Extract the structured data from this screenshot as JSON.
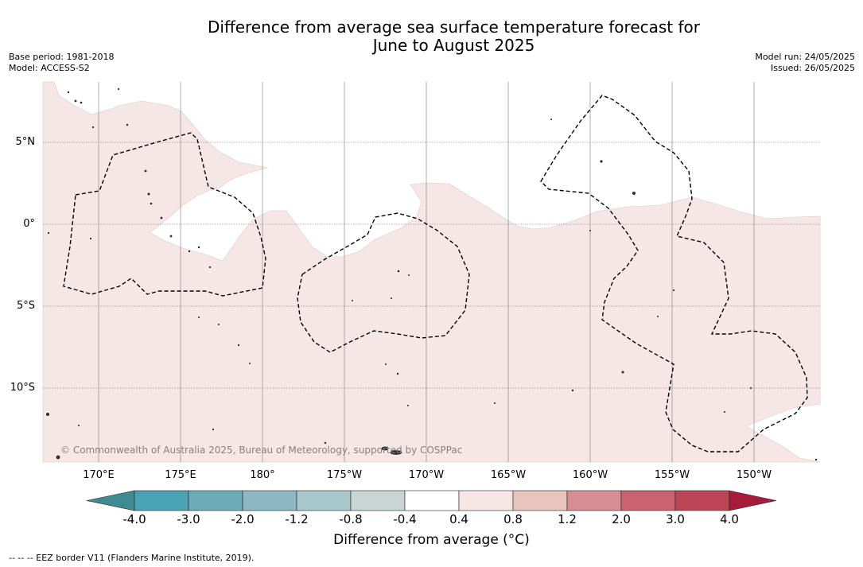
{
  "title_line1": "Difference from average sea surface temperature forecast for",
  "title_line2": "June to August 2025",
  "meta": {
    "base_period": "Base period: 1981-2018",
    "model": "Model: ACCESS-S2",
    "model_run": "Model run: 24/05/2025",
    "issued": "Issued: 26/05/2025"
  },
  "lon_ticks": [
    "170°E",
    "175°E",
    "180°",
    "175°W",
    "170°W",
    "165°W",
    "160°W",
    "155°W",
    "150°W"
  ],
  "lat_ticks": [
    "5°N",
    "0°",
    "5°S",
    "10°S"
  ],
  "copyright": "© Commonwealth of Australia 2025, Bureau of Meteorology, supported by COSPPac",
  "colorbar": {
    "title": "Difference from average (°C)",
    "labels": [
      "-4.0",
      "-3.0",
      "-2.0",
      "-1.2",
      "-0.8",
      "-0.4",
      "0.4",
      "0.8",
      "1.2",
      "2.0",
      "3.0",
      "4.0"
    ],
    "colors": [
      "#3f8b92",
      "#4aa3b3",
      "#6eabb9",
      "#8cb8c3",
      "#a9c8cc",
      "#cad6d6",
      "#ffffff",
      "#f6e6e4",
      "#e8c4be",
      "#d68d93",
      "#c9636e",
      "#bd4656",
      "#a61d3c"
    ]
  },
  "footnote": "-- -- -- EEZ border V11 (Flanders Marine Institute, 2019).",
  "colors": {
    "anomaly_fill": "#f5e7e5",
    "grid": "#555555",
    "eez": "#000000"
  }
}
